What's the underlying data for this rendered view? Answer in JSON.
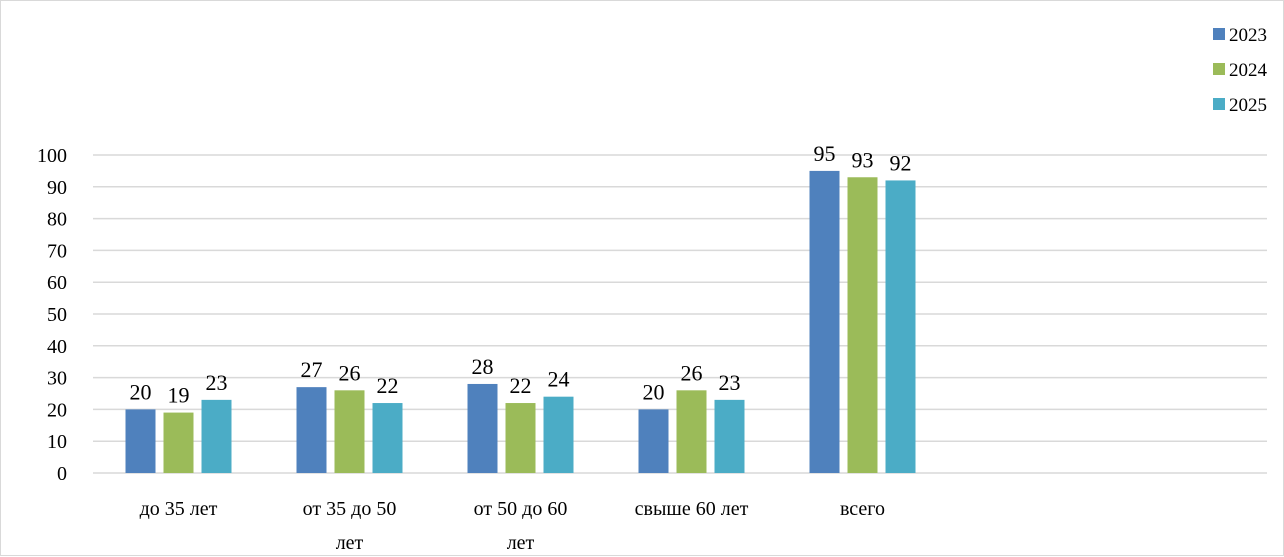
{
  "chart_data": {
    "type": "bar",
    "categories": [
      [
        "до 35 лет"
      ],
      [
        "от 35 до 50",
        "лет"
      ],
      [
        "от 50 до 60",
        "лет"
      ],
      [
        "свыше 60 лет"
      ],
      [
        "всего"
      ]
    ],
    "series": [
      {
        "name": "2023",
        "color": "#4f81bd",
        "values": [
          20,
          27,
          28,
          20,
          95
        ]
      },
      {
        "name": "2024",
        "color": "#9bbb59",
        "values": [
          19,
          26,
          22,
          26,
          93
        ]
      },
      {
        "name": "2025",
        "color": "#4bacc6",
        "values": [
          23,
          22,
          24,
          23,
          92
        ]
      }
    ],
    "ylim": [
      0,
      100
    ],
    "yticks": [
      0,
      10,
      20,
      30,
      40,
      50,
      60,
      70,
      80,
      90,
      100
    ],
    "grid": true,
    "legend": "top-right",
    "data_labels": true,
    "title": "",
    "xlabel": "",
    "ylabel": ""
  }
}
